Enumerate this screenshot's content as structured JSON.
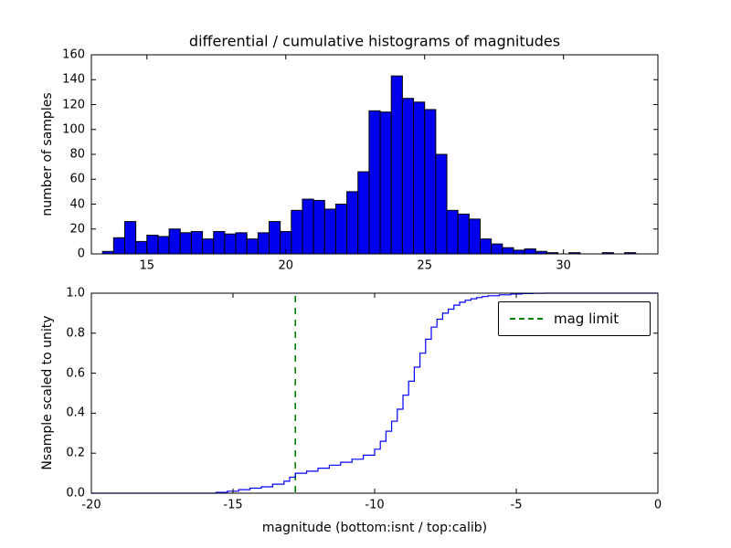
{
  "figure": {
    "background": "#ffffff"
  },
  "colors": {
    "hist_fill": "#0000ee",
    "hist_edge": "#000000",
    "cumulative_line": "#0000ff",
    "mag_limit_line": "#008000",
    "axis": "#000000"
  },
  "chart_data": [
    {
      "type": "bar",
      "variant": "histogram",
      "title": "differential / cumulative histograms of magnitudes",
      "xlabel": "",
      "ylabel": "number of samples",
      "xlim": [
        13.0,
        33.4
      ],
      "ylim": [
        0,
        160
      ],
      "grid": false,
      "xticks": {
        "values": [
          15,
          20,
          25,
          30
        ],
        "labels": [
          "15",
          "20",
          "25",
          "30"
        ]
      },
      "yticks": {
        "values": [
          0,
          20,
          40,
          60,
          80,
          100,
          120,
          140,
          160
        ],
        "labels": [
          "0",
          "20",
          "40",
          "60",
          "80",
          "100",
          "120",
          "140",
          "160"
        ]
      },
      "bins": {
        "start": 13.4,
        "width": 0.4
      },
      "counts": [
        2,
        13,
        26,
        10,
        15,
        14,
        20,
        17,
        18,
        12,
        18,
        16,
        17,
        12,
        17,
        26,
        18,
        35,
        44,
        43,
        36,
        40,
        50,
        66,
        115,
        114,
        143,
        125,
        122,
        116,
        80,
        35,
        32,
        28,
        12,
        8,
        5,
        3,
        4,
        2,
        1,
        0,
        1,
        0,
        0,
        1,
        0,
        1
      ]
    },
    {
      "type": "line",
      "variant": "cumulative-step",
      "title": "",
      "xlabel": "magnitude (bottom:isnt / top:calib)",
      "ylabel": "Nsample scaled to unity",
      "xlim": [
        -20,
        0
      ],
      "ylim": [
        0.0,
        1.0
      ],
      "grid": false,
      "xticks": {
        "values": [
          -20,
          -15,
          -10,
          -5,
          0
        ],
        "labels": [
          "-20",
          "-15",
          "-10",
          "-5",
          "0"
        ]
      },
      "yticks": {
        "values": [
          0.0,
          0.2,
          0.4,
          0.6,
          0.8,
          1.0
        ],
        "labels": [
          "0.0",
          "0.2",
          "0.4",
          "0.6",
          "0.8",
          "1.0"
        ]
      },
      "points": [
        [
          -20.0,
          0.0
        ],
        [
          -15.6,
          0.004
        ],
        [
          -15.2,
          0.01
        ],
        [
          -14.8,
          0.018
        ],
        [
          -14.4,
          0.025
        ],
        [
          -14.0,
          0.032
        ],
        [
          -13.6,
          0.045
        ],
        [
          -13.2,
          0.06
        ],
        [
          -13.0,
          0.08
        ],
        [
          -12.8,
          0.1
        ],
        [
          -12.4,
          0.11
        ],
        [
          -12.0,
          0.125
        ],
        [
          -11.6,
          0.14
        ],
        [
          -11.2,
          0.155
        ],
        [
          -10.8,
          0.17
        ],
        [
          -10.4,
          0.19
        ],
        [
          -10.0,
          0.22
        ],
        [
          -9.8,
          0.26
        ],
        [
          -9.6,
          0.31
        ],
        [
          -9.4,
          0.36
        ],
        [
          -9.2,
          0.42
        ],
        [
          -9.0,
          0.49
        ],
        [
          -8.8,
          0.56
        ],
        [
          -8.6,
          0.63
        ],
        [
          -8.4,
          0.7
        ],
        [
          -8.2,
          0.77
        ],
        [
          -8.0,
          0.83
        ],
        [
          -7.8,
          0.87
        ],
        [
          -7.6,
          0.9
        ],
        [
          -7.4,
          0.92
        ],
        [
          -7.2,
          0.94
        ],
        [
          -7.0,
          0.955
        ],
        [
          -6.8,
          0.965
        ],
        [
          -6.6,
          0.972
        ],
        [
          -6.4,
          0.978
        ],
        [
          -6.2,
          0.983
        ],
        [
          -6.0,
          0.987
        ],
        [
          -5.6,
          0.992
        ],
        [
          -5.2,
          0.996
        ],
        [
          -4.8,
          0.998
        ],
        [
          -4.4,
          0.999
        ],
        [
          -4.0,
          1.0
        ],
        [
          0.0,
          1.0
        ]
      ],
      "vline": {
        "x": -12.8,
        "style": "dashed",
        "label": "mag limit"
      },
      "legend": {
        "label": "mag limit",
        "position": "upper right"
      }
    }
  ]
}
